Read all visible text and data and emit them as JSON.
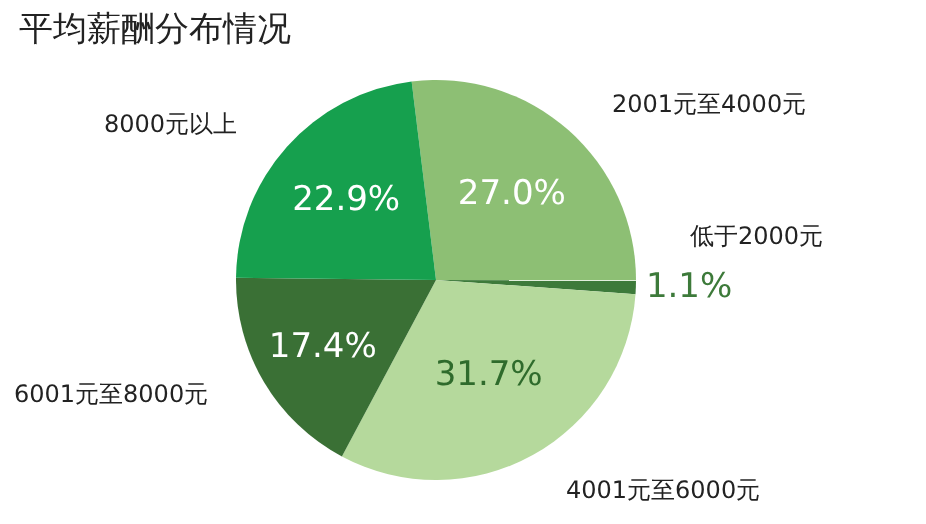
{
  "chart_data": {
    "type": "pie",
    "title": "平均薪酬分布情况",
    "categories": [
      "2001元至4000元",
      "低于2000元",
      "4001元至6000元",
      "6001元至8000元",
      "8000元以上"
    ],
    "values": [
      27.0,
      1.1,
      31.7,
      17.4,
      22.9
    ],
    "value_labels": [
      "27.0%",
      "1.1%",
      "31.7%",
      "17.4%",
      "22.9%"
    ],
    "colors": [
      "#8dbf74",
      "#3d7a3a",
      "#b5d99c",
      "#3a7035",
      "#16a04e"
    ]
  }
}
